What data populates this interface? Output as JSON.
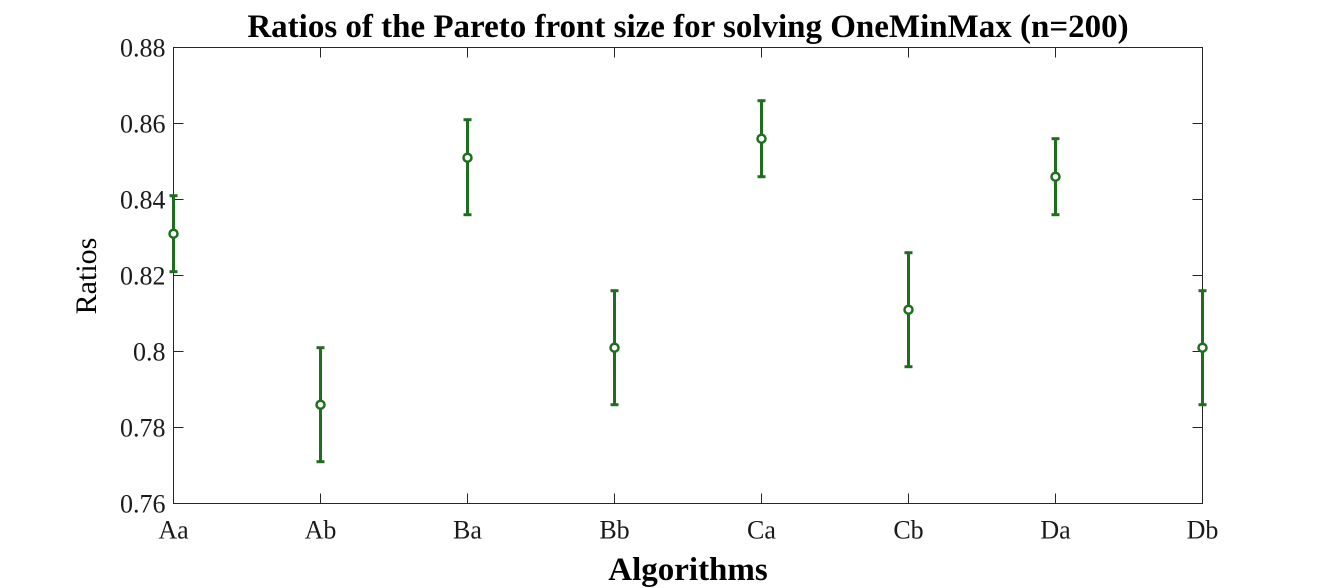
{
  "chart_data": {
    "type": "errorbar",
    "title": "Ratios of the Pareto front size for solving OneMinMax (n=200)",
    "xlabel": "Algorithms",
    "ylabel": "Ratios",
    "categories": [
      "Aa",
      "Ab",
      "Ba",
      "Bb",
      "Ca",
      "Cb",
      "Da",
      "Db"
    ],
    "values": [
      0.831,
      0.786,
      0.851,
      0.801,
      0.856,
      0.811,
      0.846,
      0.801
    ],
    "lower": [
      0.821,
      0.771,
      0.836,
      0.786,
      0.846,
      0.796,
      0.836,
      0.786
    ],
    "upper": [
      0.841,
      0.801,
      0.861,
      0.816,
      0.866,
      0.826,
      0.856,
      0.816
    ],
    "ylim": [
      0.76,
      0.88
    ],
    "yticks": [
      "0.76",
      "0.78",
      "0.8",
      "0.82",
      "0.84",
      "0.86",
      "0.88"
    ],
    "ytick_values": [
      0.76,
      0.78,
      0.8,
      0.82,
      0.84,
      0.86,
      0.88
    ],
    "grid": false,
    "legend": "none",
    "color": "#1f6e1f"
  }
}
